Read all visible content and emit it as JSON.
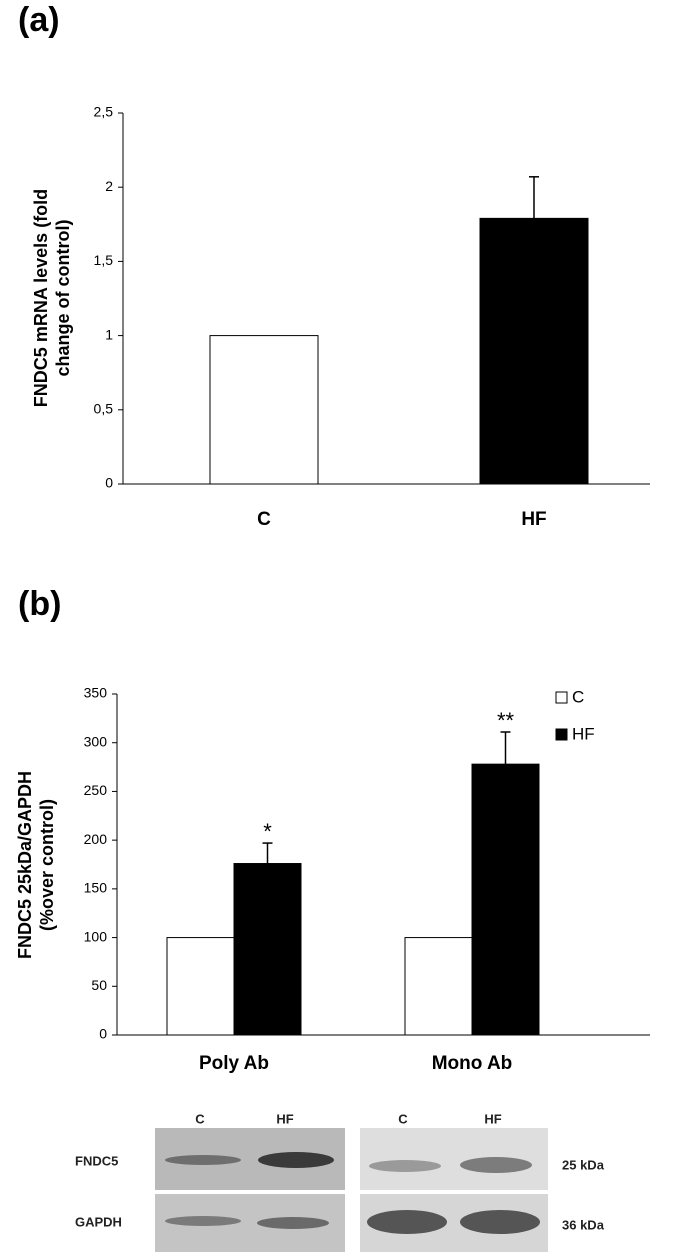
{
  "chart_data": [
    {
      "type": "bar",
      "panel": "(a)",
      "ylabel": [
        "FNDC5 mRNA levels (fold",
        "change of control)"
      ],
      "categories": [
        "C",
        "HF"
      ],
      "values": [
        1.0,
        1.79
      ],
      "errors": [
        null,
        0.28
      ],
      "colors": [
        "#ffffff",
        "#000000"
      ],
      "ylim": [
        0,
        2.5
      ],
      "yticks": [
        0,
        {
          "value": 0.5,
          "label": "0,5"
        },
        1,
        {
          "value": 1.5,
          "label": "1,5"
        },
        2,
        {
          "value": 2.5,
          "label": "2,5"
        }
      ]
    },
    {
      "type": "grouped_bar",
      "panel": "(b)",
      "ylabel": [
        "FNDC5 25kDa/GAPDH",
        "(%over control)"
      ],
      "categories": [
        "Poly Ab",
        "Mono Ab"
      ],
      "series": [
        {
          "name": "C",
          "color": "#ffffff",
          "values": [
            100,
            100
          ]
        },
        {
          "name": "HF",
          "color": "#000000",
          "values": [
            176,
            278
          ],
          "errors": [
            21,
            33
          ],
          "significance": [
            "*",
            "**"
          ]
        }
      ],
      "ylim": [
        0,
        350
      ],
      "yticks": [
        0,
        50,
        100,
        150,
        200,
        250,
        300,
        350
      ],
      "legend": "top-right"
    }
  ],
  "blot": {
    "lanes": [
      "C",
      "HF",
      "C",
      "HF"
    ],
    "rows": [
      {
        "label": "FNDC5",
        "size": "25 kDa"
      },
      {
        "label": "GAPDH",
        "size": "36 kDa"
      }
    ]
  }
}
